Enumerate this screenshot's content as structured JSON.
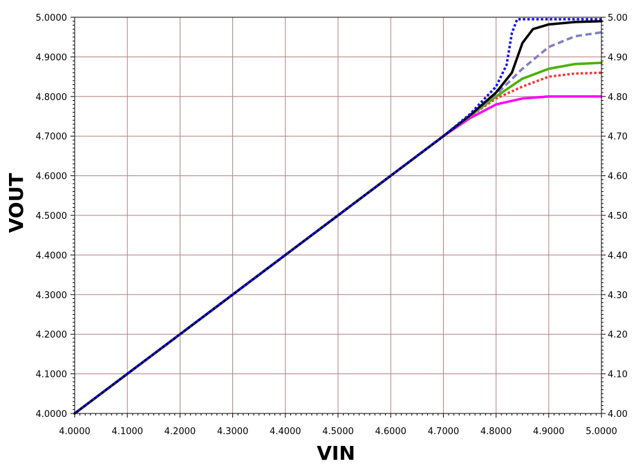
{
  "chart_data": {
    "type": "line",
    "xlabel": "VIN",
    "ylabel": "VOUT",
    "xlim": [
      4.0,
      5.0
    ],
    "ylim": [
      4.0,
      5.0
    ],
    "x_ticks": [
      "4.0000",
      "4.1000",
      "4.2000",
      "4.3000",
      "4.4000",
      "4.5000",
      "4.6000",
      "4.7000",
      "4.8000",
      "4.9000",
      "5.0000"
    ],
    "y_ticks": [
      "4.0000",
      "4.1000",
      "4.2000",
      "4.3000",
      "4.4000",
      "4.5000",
      "4.6000",
      "4.7000",
      "4.8000",
      "4.9000",
      "5.0000"
    ],
    "y_ticks_right": [
      "4.00",
      "4.10",
      "4.20",
      "4.30",
      "4.40",
      "4.50",
      "4.60",
      "4.70",
      "4.80",
      "4.90",
      "5.00"
    ],
    "grid": true,
    "series": [
      {
        "color": "#ff00ff",
        "style": "solid",
        "x": [
          4.0,
          4.7,
          4.75,
          4.8,
          4.85,
          4.9,
          4.95,
          5.0
        ],
        "y": [
          4.0,
          4.7,
          4.745,
          4.78,
          4.795,
          4.8,
          4.8,
          4.8
        ]
      },
      {
        "color": "#ff3333",
        "style": "dotted",
        "x": [
          4.0,
          4.7,
          4.75,
          4.8,
          4.85,
          4.9,
          4.95,
          5.0
        ],
        "y": [
          4.0,
          4.7,
          4.75,
          4.795,
          4.825,
          4.85,
          4.858,
          4.86
        ]
      },
      {
        "color": "#4caf00",
        "style": "solid",
        "x": [
          4.0,
          4.7,
          4.75,
          4.8,
          4.85,
          4.9,
          4.95,
          5.0
        ],
        "y": [
          4.0,
          4.7,
          4.75,
          4.8,
          4.845,
          4.87,
          4.882,
          4.885
        ]
      },
      {
        "color": "#8080c0",
        "style": "dashed",
        "x": [
          4.0,
          4.7,
          4.75,
          4.8,
          4.85,
          4.9,
          4.95,
          5.0
        ],
        "y": [
          4.0,
          4.7,
          4.75,
          4.805,
          4.87,
          4.925,
          4.952,
          4.962
        ]
      },
      {
        "color": "#000000",
        "style": "solid",
        "x": [
          4.0,
          4.7,
          4.75,
          4.8,
          4.83,
          4.85,
          4.87,
          4.9,
          4.95,
          5.0
        ],
        "y": [
          4.0,
          4.7,
          4.752,
          4.81,
          4.86,
          4.935,
          4.97,
          4.982,
          4.988,
          4.99
        ]
      },
      {
        "color": "#1010ee",
        "style": "dotted",
        "x": [
          4.0,
          4.7,
          4.75,
          4.8,
          4.82,
          4.83,
          4.84,
          4.86,
          4.9,
          5.0
        ],
        "y": [
          4.0,
          4.7,
          4.755,
          4.825,
          4.88,
          4.96,
          4.995,
          4.995,
          4.995,
          4.995
        ]
      }
    ]
  }
}
